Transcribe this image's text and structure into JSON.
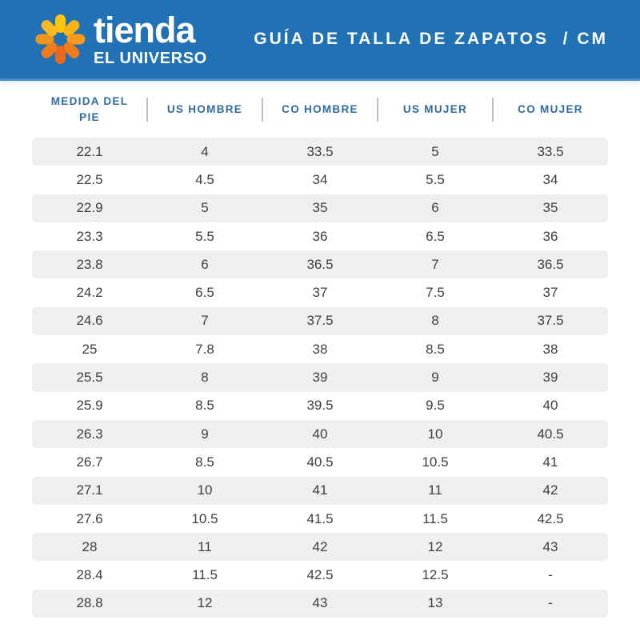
{
  "brand": {
    "logo_icon": "sunburst-icon",
    "name": "tienda",
    "subname": "EL UNIVERSO"
  },
  "header": {
    "title": "GUÍA DE TALLA DE ZAPATOS  / CM"
  },
  "colors": {
    "topbar_bg": "#2171b5",
    "topbar_edge": "#4289c6",
    "column_header_text": "#2f6ba3",
    "header_divider": "#b3c1ce",
    "alt_row_bg": "#efefef",
    "cell_text": "#3f3f3f",
    "sun_petals": [
      "#fdc60b",
      "#fbb216",
      "#f59a1d",
      "#ef7e1a",
      "#eb671e",
      "#ee7c1b",
      "#f0941c",
      "#fab821"
    ]
  },
  "chart_data": {
    "type": "table",
    "title": "GUÍA DE TALLA DE ZAPATOS / CM",
    "columns": [
      "MEDIDA DEL PIE",
      "US HOMBRE",
      "CO HOMBRE",
      "US MUJER",
      "CO MUJER"
    ],
    "rows": [
      [
        "22.1",
        "4",
        "33.5",
        "5",
        "33.5"
      ],
      [
        "22.5",
        "4.5",
        "34",
        "5.5",
        "34"
      ],
      [
        "22.9",
        "5",
        "35",
        "6",
        "35"
      ],
      [
        "23.3",
        "5.5",
        "36",
        "6.5",
        "36"
      ],
      [
        "23.8",
        "6",
        "36.5",
        "7",
        "36.5"
      ],
      [
        "24.2",
        "6.5",
        "37",
        "7.5",
        "37"
      ],
      [
        "24.6",
        "7",
        "37.5",
        "8",
        "37.5"
      ],
      [
        "25",
        "7.8",
        "38",
        "8.5",
        "38"
      ],
      [
        "25.5",
        "8",
        "39",
        "9",
        "39"
      ],
      [
        "25.9",
        "8.5",
        "39.5",
        "9.5",
        "40"
      ],
      [
        "26.3",
        "9",
        "40",
        "10",
        "40.5"
      ],
      [
        "26.7",
        "8.5",
        "40.5",
        "10.5",
        "41"
      ],
      [
        "27.1",
        "10",
        "41",
        "11",
        "42"
      ],
      [
        "27.6",
        "10.5",
        "41.5",
        "11.5",
        "42.5"
      ],
      [
        "28",
        "11",
        "42",
        "12",
        "43"
      ],
      [
        "28.4",
        "11.5",
        "42.5",
        "12.5",
        "-"
      ],
      [
        "28.8",
        "12",
        "43",
        "13",
        "-"
      ]
    ]
  }
}
